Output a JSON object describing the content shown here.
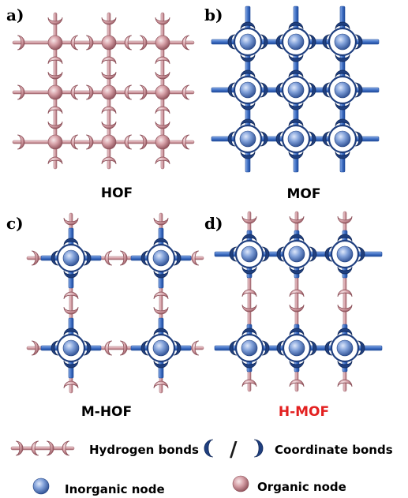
{
  "panels": {
    "a": {
      "label": "a)",
      "title": "HOF"
    },
    "b": {
      "label": "b)",
      "title": "MOF"
    },
    "c": {
      "label": "c)",
      "title": "M-HOF"
    },
    "d": {
      "label": "d)",
      "title": "H-MOF"
    }
  },
  "legend": {
    "hydrogen_bonds": "Hydrogen bonds",
    "slash": "/",
    "coordinate_bonds": "Coordinate bonds",
    "inorganic_node": "Inorganic node",
    "organic_node": "Organic node"
  },
  "colors": {
    "organic": "#d9a7ac",
    "organic_dark": "#a56d74",
    "inorganic": "#6f8fc8",
    "inorganic_dark": "#1f3f7f",
    "coordinate_rod": "#3f6fc4",
    "coordinate_rod_dark": "#1e4a9a",
    "highlight_title": "#e32020",
    "text": "#000000"
  }
}
